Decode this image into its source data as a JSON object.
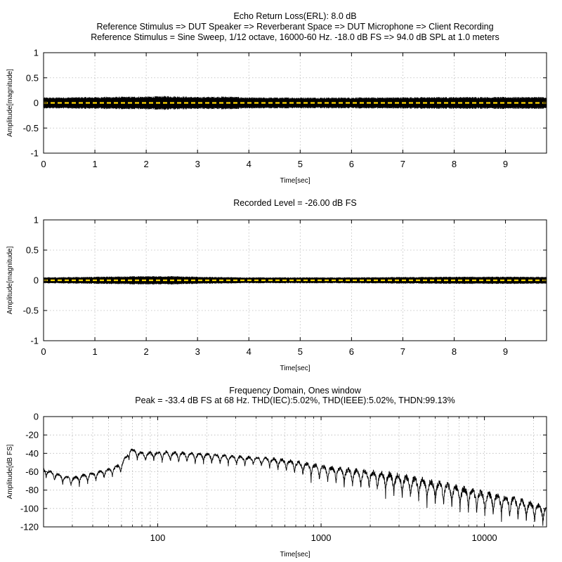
{
  "chart_data": [
    {
      "type": "line",
      "title_lines": [
        "Echo Return Loss(ERL): 8.0 dB",
        "Reference Stimulus => DUT Speaker => Reverberant Space => DUT Microphone => Client Recording",
        "Reference Stimulus = Sine Sweep, 1/12 octave, 16000-60 Hz. -18.0 dB FS => 94.0 dB SPL at 1.0 meters"
      ],
      "xlabel": "Time[sec]",
      "ylabel": "Amplitude[magnitude]",
      "xlim": [
        0,
        9.8
      ],
      "ylim": [
        -1,
        1
      ],
      "xticks": [
        0,
        1,
        2,
        3,
        4,
        5,
        6,
        7,
        8,
        9
      ],
      "yticks": [
        1,
        0.5,
        0,
        -0.5,
        -1
      ],
      "ytick_labels": [
        "1",
        "0.5",
        "0",
        "-0.5",
        "-1"
      ],
      "grid": true,
      "series": [
        {
          "color": "#000000",
          "envelope": [
            [
              0,
              0.11
            ],
            [
              1,
              0.12
            ],
            [
              2,
              0.13
            ],
            [
              2.4,
              0.14
            ],
            [
              3,
              0.12
            ],
            [
              3.6,
              0.13
            ],
            [
              4,
              0.11
            ],
            [
              6,
              0.11
            ],
            [
              8,
              0.12
            ],
            [
              9.8,
              0.12
            ]
          ]
        },
        {
          "color": "#ffd700",
          "style": "dashed",
          "x": [
            0,
            9.8
          ],
          "y": [
            0,
            0
          ]
        }
      ]
    },
    {
      "type": "line",
      "title_lines": [
        "Recorded Level = -26.00 dB FS"
      ],
      "xlabel": "Time[sec]",
      "ylabel": "Amplitude[magnitude]",
      "xlim": [
        0,
        9.8
      ],
      "ylim": [
        -1,
        1
      ],
      "xticks": [
        0,
        1,
        2,
        3,
        4,
        5,
        6,
        7,
        8,
        9
      ],
      "yticks": [
        1,
        0.5,
        0,
        -0.5,
        -1
      ],
      "ytick_labels": [
        "1",
        "0.5",
        "0",
        "-0.5",
        "-1"
      ],
      "grid": true,
      "series": [
        {
          "color": "#000000",
          "envelope": [
            [
              0,
              0.05
            ],
            [
              1,
              0.06
            ],
            [
              2,
              0.07
            ],
            [
              2.5,
              0.07
            ],
            [
              3,
              0.06
            ],
            [
              4,
              0.05
            ],
            [
              6,
              0.05
            ],
            [
              8,
              0.06
            ],
            [
              9.8,
              0.06
            ]
          ]
        },
        {
          "color": "#ffd700",
          "style": "dashed",
          "x": [
            0,
            9.8
          ],
          "y": [
            0,
            0
          ]
        }
      ]
    },
    {
      "type": "line",
      "title_lines": [
        "Frequency Domain, Ones window",
        "Peak = -33.4 dB FS at 68 Hz. THD(IEC):5.02%, THD(IEEE):5.02%, THDN:99.13%"
      ],
      "xlabel": "Time[sec]",
      "ylabel": "Amplitude[dB FS]",
      "xscale": "log",
      "xlim": [
        20,
        24000
      ],
      "ylim": [
        -120,
        0
      ],
      "xticks": [
        100,
        1000,
        10000
      ],
      "xtick_labels": [
        "100",
        "1000",
        "10000"
      ],
      "yticks": [
        0,
        -20,
        -40,
        -60,
        -80,
        -100,
        -120
      ],
      "ytick_labels": [
        "0",
        "-20",
        "-40",
        "-60",
        "-80",
        "-100",
        "-120"
      ],
      "grid": true,
      "series": [
        {
          "color": "#000000",
          "x": [
            20,
            25,
            30,
            40,
            50,
            60,
            68,
            80,
            100,
            150,
            200,
            300,
            500,
            700,
            1000,
            2000,
            3000,
            5000,
            10000,
            15000,
            20000,
            24000
          ],
          "y": [
            -55,
            -62,
            -65,
            -60,
            -56,
            -50,
            -33.4,
            -38,
            -37,
            -38,
            -39,
            -42,
            -44,
            -47,
            -52,
            -57,
            -61,
            -68,
            -80,
            -86,
            -92,
            -96
          ],
          "ripple": [
            [
              20,
              12
            ],
            [
              60,
              12
            ],
            [
              150,
              14
            ],
            [
              400,
              12
            ],
            [
              1000,
              20
            ],
            [
              3000,
              30
            ],
            [
              10000,
              30
            ],
            [
              24000,
              25
            ]
          ]
        }
      ]
    }
  ]
}
